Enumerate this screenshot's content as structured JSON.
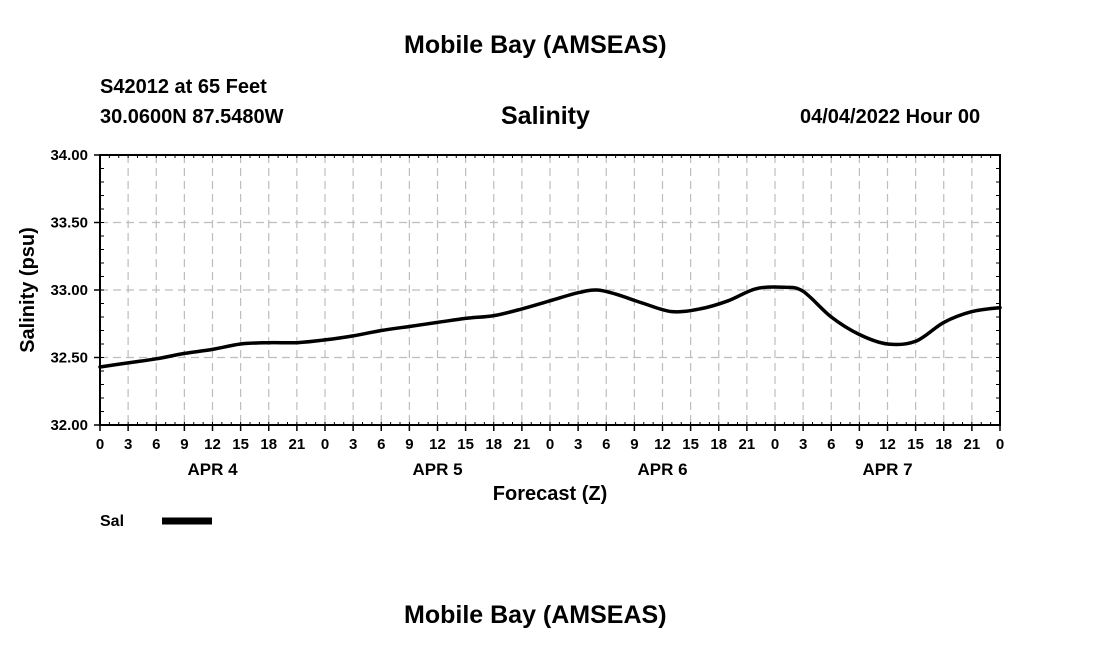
{
  "header": {
    "title": "Mobile Bay (AMSEAS)",
    "station": "S42012 at 65 Feet",
    "coords": "30.0600N  87.5480W",
    "date": "04/04/2022 Hour 00"
  },
  "footer": {
    "title": "Mobile Bay (AMSEAS)"
  },
  "chart_data": {
    "type": "line",
    "title": "Salinity",
    "xlabel": "Forecast (Z)",
    "ylabel": "Salinity (psu)",
    "ylim": [
      32.0,
      34.0
    ],
    "xlim": [
      0,
      96
    ],
    "y_ticks": [
      "32.00",
      "32.50",
      "33.00",
      "33.50",
      "34.00"
    ],
    "x_tick_labels": [
      "0",
      "3",
      "6",
      "9",
      "12",
      "15",
      "18",
      "21",
      "0",
      "3",
      "6",
      "9",
      "12",
      "15",
      "18",
      "21",
      "0",
      "3",
      "6",
      "9",
      "12",
      "15",
      "18",
      "21",
      "0",
      "3",
      "6",
      "9",
      "12",
      "15",
      "18",
      "21",
      "0"
    ],
    "day_labels": [
      "APR 4",
      "APR 5",
      "APR 6",
      "APR 7"
    ],
    "grid": true,
    "series": [
      {
        "name": "Sal",
        "x": [
          0,
          3,
          6,
          9,
          12,
          15,
          18,
          21,
          24,
          27,
          30,
          33,
          36,
          39,
          42,
          45,
          48,
          51,
          53,
          55,
          58,
          61,
          64,
          67,
          70,
          73,
          75,
          78,
          81,
          84,
          87,
          90,
          93,
          96
        ],
        "values": [
          32.43,
          32.46,
          32.49,
          32.53,
          32.56,
          32.6,
          32.61,
          32.61,
          32.63,
          32.66,
          32.7,
          32.73,
          32.76,
          32.79,
          32.81,
          32.86,
          32.92,
          32.98,
          33.0,
          32.97,
          32.9,
          32.84,
          32.86,
          32.92,
          33.01,
          33.02,
          32.99,
          32.8,
          32.67,
          32.6,
          32.62,
          32.76,
          32.84,
          32.87
        ]
      }
    ]
  }
}
